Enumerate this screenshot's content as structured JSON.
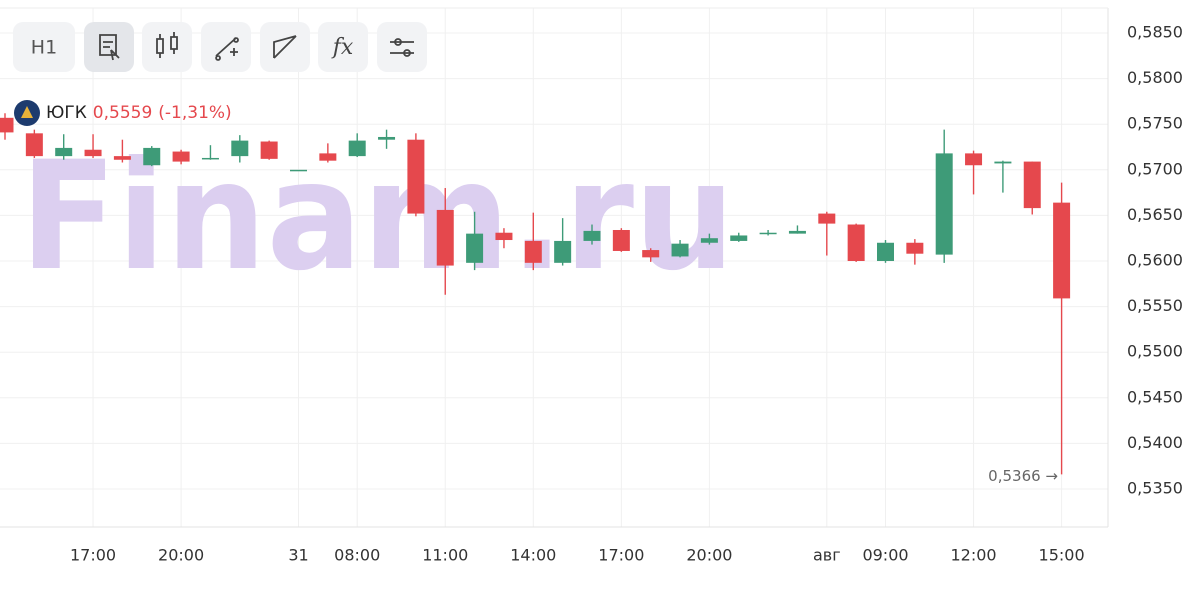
{
  "toolbar": {
    "interval": "H1"
  },
  "chart_data": {
    "type": "candlestick",
    "watermark": "Finam.ru",
    "header": {
      "ticker": "ЮГК",
      "price": {
        "value": 0.5559,
        "label": "0,5559"
      },
      "change": "(-1,31%)"
    },
    "categories": [
      null,
      null,
      null,
      "17:00",
      null,
      null,
      "20:00",
      null,
      null,
      null,
      "31",
      null,
      "08:00",
      null,
      null,
      "11:00",
      null,
      null,
      "14:00",
      null,
      null,
      "17:00",
      null,
      null,
      "20:00",
      null,
      null,
      null,
      "авг",
      null,
      "09:00",
      null,
      null,
      "12:00",
      null,
      null,
      "15:00"
    ],
    "series": [
      {
        "name": "ЮГК",
        "up_color": "#3e9b78",
        "down_color": "#e5484d",
        "open": [
          0.5757,
          0.574,
          0.5715,
          0.5722,
          0.5715,
          0.5705,
          0.572,
          0.5713,
          0.5715,
          0.5731,
          0.57,
          0.5718,
          0.5715,
          0.5733,
          0.5733,
          0.5656,
          0.5598,
          0.5631,
          0.5622,
          0.5598,
          0.5622,
          0.5634,
          0.5612,
          0.5605,
          0.562,
          0.5622,
          0.563,
          0.563,
          0.5652,
          0.564,
          0.56,
          0.562,
          0.5607,
          0.5718,
          0.5707,
          0.5709,
          0.5664
        ],
        "high": [
          0.5762,
          0.5744,
          0.5739,
          0.5739,
          0.5733,
          0.5726,
          0.5722,
          0.5727,
          0.5738,
          0.5732,
          0.57,
          0.5729,
          0.574,
          0.5744,
          0.574,
          0.568,
          0.5654,
          0.5636,
          0.5653,
          0.5647,
          0.564,
          0.5636,
          0.5614,
          0.5623,
          0.563,
          0.5631,
          0.5634,
          0.5639,
          0.5654,
          0.5641,
          0.5623,
          0.5624,
          0.5744,
          0.5721,
          0.571,
          0.5709,
          0.5686
        ],
        "low": [
          0.5733,
          0.5713,
          0.5711,
          0.5713,
          0.5708,
          0.5704,
          0.5706,
          0.5711,
          0.5708,
          0.5711,
          0.57,
          0.5708,
          0.5714,
          0.5723,
          0.5649,
          0.5563,
          0.559,
          0.5614,
          0.559,
          0.5595,
          0.5618,
          0.561,
          0.5599,
          0.5604,
          0.5618,
          0.5621,
          0.5628,
          0.563,
          0.5606,
          0.5599,
          0.5598,
          0.5596,
          0.5598,
          0.5673,
          0.5675,
          0.5651,
          0.5366
        ],
        "close": [
          0.5741,
          0.5715,
          0.5724,
          0.5715,
          0.5711,
          0.5724,
          0.5709,
          0.5713,
          0.5732,
          0.5712,
          0.57,
          0.571,
          0.5732,
          0.5736,
          0.5652,
          0.5595,
          0.563,
          0.5623,
          0.5598,
          0.5622,
          0.5633,
          0.5611,
          0.5604,
          0.5619,
          0.5625,
          0.5628,
          0.5631,
          0.5633,
          0.5641,
          0.56,
          0.562,
          0.5608,
          0.5718,
          0.5705,
          0.5709,
          0.5658,
          0.5559
        ]
      }
    ],
    "low_marker": {
      "value": 0.5366,
      "label": "0,5366 →"
    },
    "ylim": [
      0.535,
      0.585
    ],
    "yticks": [
      {
        "value": 0.585,
        "label": "0,5850"
      },
      {
        "value": 0.58,
        "label": "0,5800"
      },
      {
        "value": 0.575,
        "label": "0,5750"
      },
      {
        "value": 0.57,
        "label": "0,5700"
      },
      {
        "value": 0.565,
        "label": "0,5650"
      },
      {
        "value": 0.56,
        "label": "0,5600"
      },
      {
        "value": 0.555,
        "label": "0,5550"
      },
      {
        "value": 0.55,
        "label": "0,5500"
      },
      {
        "value": 0.545,
        "label": "0,5450"
      },
      {
        "value": 0.54,
        "label": "0,5400"
      },
      {
        "value": 0.535,
        "label": "0,5350"
      }
    ],
    "grid": true
  }
}
